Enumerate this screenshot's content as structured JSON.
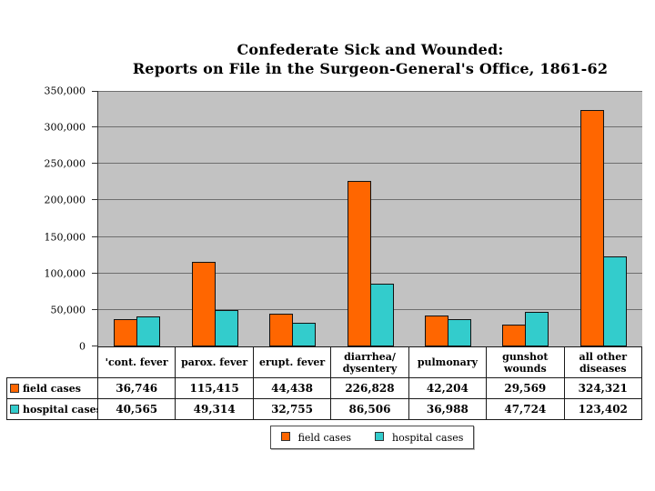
{
  "title": {
    "line1": "Confederate Sick and Wounded:",
    "line2": "Reports on File in the Surgeon-General's Office, 1861-62"
  },
  "chart_data": {
    "type": "bar",
    "categories": [
      "'cont. fever",
      "parox. fever",
      "erupt. fever",
      "diarrhea/\ndysentery",
      "pulmonary",
      "gunshot\nwounds",
      "all other\ndiseases"
    ],
    "series": [
      {
        "name": "field cases",
        "color": "#FF6600",
        "values": [
          36746,
          115415,
          44438,
          226828,
          42204,
          29569,
          324321
        ]
      },
      {
        "name": "hospital cases",
        "color": "#33CCCC",
        "values": [
          40565,
          49314,
          32755,
          86506,
          36988,
          47724,
          123402
        ]
      }
    ],
    "title": "Confederate Sick and Wounded: Reports on File in the Surgeon-General's Office, 1861-62",
    "xlabel": "",
    "ylabel": "",
    "ylim": [
      0,
      350000
    ],
    "ytick_interval": 50000,
    "ytick_labels": [
      "0",
      "50,000",
      "100,000",
      "150,000",
      "200,000",
      "250,000",
      "300,000",
      "350,000"
    ],
    "grid": true,
    "plot_bg_color": "#C0C0C0",
    "gridline_color": "#6E6E6E",
    "legend_position": "bottom",
    "data_table_shown": true
  },
  "table": {
    "row_labels": [
      "field cases",
      "hospital cases"
    ],
    "values_formatted": [
      [
        "36,746",
        "115,415",
        "44,438",
        "226,828",
        "42,204",
        "29,569",
        "324,321"
      ],
      [
        "40,565",
        "49,314",
        "32,755",
        "86,506",
        "36,988",
        "47,724",
        "123,402"
      ]
    ]
  },
  "legend": {
    "items": [
      {
        "label": "field cases",
        "color": "#FF6600"
      },
      {
        "label": "hospital cases",
        "color": "#33CCCC"
      }
    ]
  }
}
